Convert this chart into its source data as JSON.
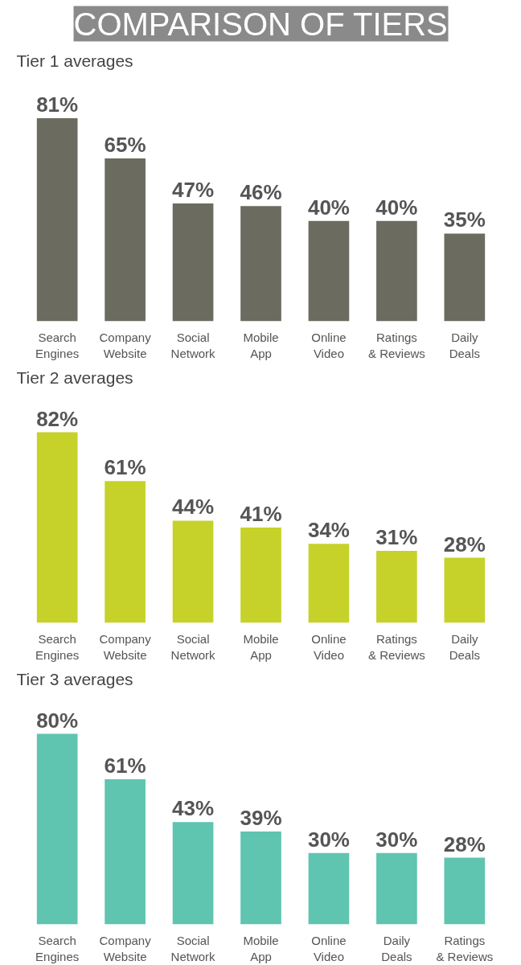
{
  "chart_data": [
    {
      "type": "bar",
      "title": "COMPARISON OF TIERS",
      "subtitle": "Tier 1 averages",
      "categories": [
        "Search Engines",
        "Company Website",
        "Social Network",
        "Mobile App",
        "Online Video",
        "Ratings & Reviews",
        "Daily Deals"
      ],
      "values": [
        81,
        65,
        47,
        46,
        40,
        40,
        35
      ],
      "value_labels": [
        "81%",
        "65%",
        "47%",
        "46%",
        "40%",
        "40%",
        "35%"
      ],
      "color": "#6b6b5f"
    },
    {
      "type": "bar",
      "title": "Tier 2 averages",
      "categories": [
        "Search Engines",
        "Company Website",
        "Social Network",
        "Mobile App",
        "Online Video",
        "Ratings & Reviews",
        "Daily Deals"
      ],
      "values": [
        82,
        61,
        44,
        41,
        34,
        31,
        28
      ],
      "value_labels": [
        "82%",
        "61%",
        "44%",
        "41%",
        "34%",
        "31%",
        "28%"
      ],
      "color": "#c6d22a"
    },
    {
      "type": "bar",
      "title": "Tier 3 averages",
      "categories": [
        "Search Engines",
        "Company Website",
        "Social Network",
        "Mobile App",
        "Online Video",
        "Daily Deals",
        "Ratings & Reviews"
      ],
      "values": [
        80,
        61,
        43,
        39,
        30,
        30,
        28
      ],
      "value_labels": [
        "80%",
        "61%",
        "43%",
        "39%",
        "30%",
        "30%",
        "28%"
      ],
      "color": "#5fc4b0"
    }
  ]
}
